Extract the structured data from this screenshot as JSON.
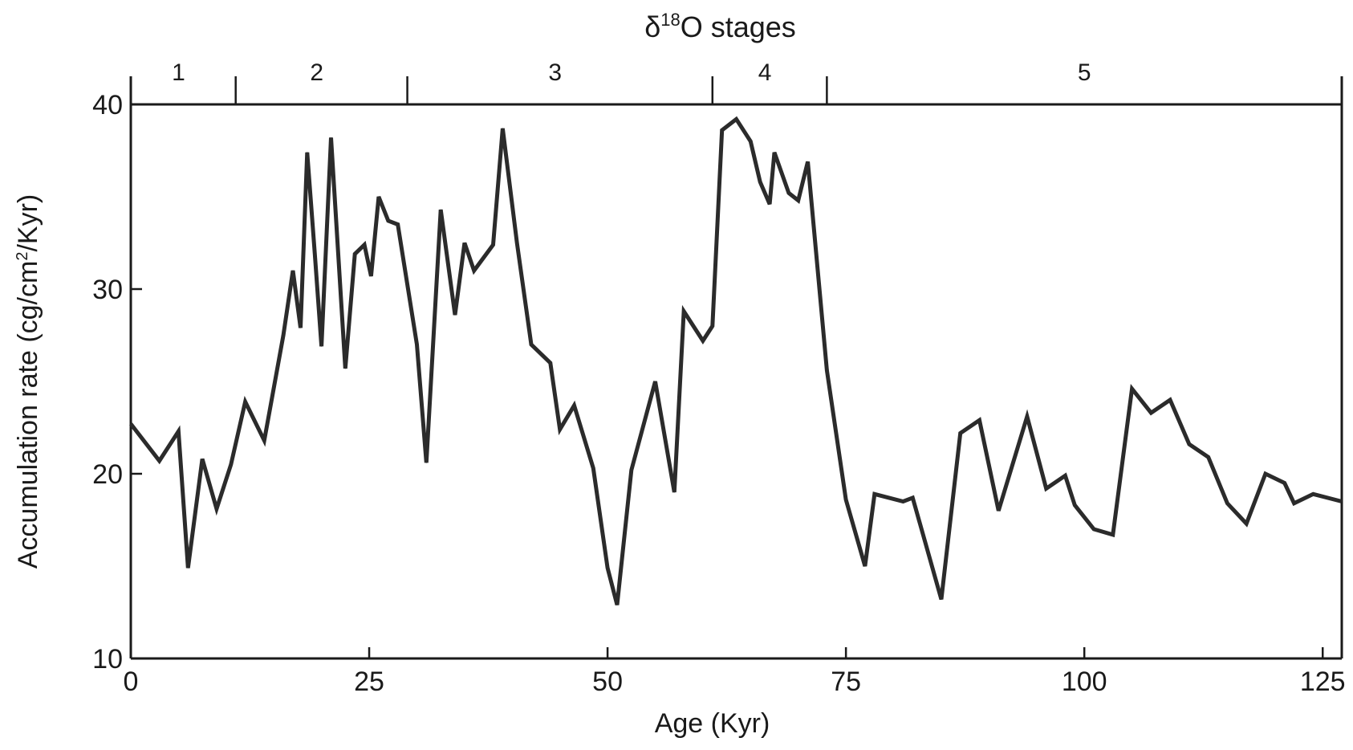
{
  "chart_data": {
    "type": "line",
    "title": "δ18O stages",
    "xlabel": "Age (Kyr)",
    "ylabel": "Accumulation rate (cg/cm2/Kyr)",
    "xlim": [
      0,
      127
    ],
    "ylim": [
      10,
      40
    ],
    "x_ticks": [
      0,
      25,
      50,
      75,
      100,
      125
    ],
    "y_ticks": [
      10,
      20,
      30,
      40
    ],
    "grid": false,
    "stage_boundaries": [
      0,
      11,
      29,
      61,
      73,
      127
    ],
    "stages": [
      {
        "label": "1",
        "x": 5
      },
      {
        "label": "2",
        "x": 19.5
      },
      {
        "label": "3",
        "x": 44.5
      },
      {
        "label": "4",
        "x": 66.5
      },
      {
        "label": "5",
        "x": 100
      }
    ],
    "series": [
      {
        "points": [
          [
            0,
            22.7
          ],
          [
            3,
            20.7
          ],
          [
            5,
            22.3
          ],
          [
            6,
            14.9
          ],
          [
            7.5,
            20.8
          ],
          [
            9,
            18.1
          ],
          [
            10.5,
            20.5
          ],
          [
            12,
            23.9
          ],
          [
            14,
            21.8
          ],
          [
            16,
            27.5
          ],
          [
            17,
            31.0
          ],
          [
            17.8,
            27.9
          ],
          [
            18.5,
            37.4
          ],
          [
            19.3,
            31.9
          ],
          [
            20,
            26.9
          ],
          [
            21,
            38.2
          ],
          [
            22.5,
            25.7
          ],
          [
            23.5,
            31.9
          ],
          [
            24.5,
            32.4
          ],
          [
            25.2,
            30.7
          ],
          [
            26,
            35.0
          ],
          [
            27,
            33.7
          ],
          [
            28,
            33.5
          ],
          [
            30,
            27.0
          ],
          [
            31,
            20.6
          ],
          [
            32.5,
            34.3
          ],
          [
            34,
            28.6
          ],
          [
            35,
            32.5
          ],
          [
            36,
            31.0
          ],
          [
            38,
            32.4
          ],
          [
            39,
            38.7
          ],
          [
            40.5,
            32.5
          ],
          [
            42,
            27.0
          ],
          [
            44,
            26.0
          ],
          [
            45,
            22.4
          ],
          [
            46.5,
            23.7
          ],
          [
            48.5,
            20.3
          ],
          [
            50,
            14.9
          ],
          [
            51,
            12.9
          ],
          [
            52.5,
            20.2
          ],
          [
            55,
            25.0
          ],
          [
            57,
            19.0
          ],
          [
            58,
            28.8
          ],
          [
            60,
            27.2
          ],
          [
            61,
            28.0
          ],
          [
            62,
            38.6
          ],
          [
            63.5,
            39.2
          ],
          [
            64.5,
            38.4
          ],
          [
            65,
            38.0
          ],
          [
            66,
            35.8
          ],
          [
            67,
            34.6
          ],
          [
            67.5,
            37.4
          ],
          [
            69,
            35.2
          ],
          [
            70,
            34.8
          ],
          [
            71,
            36.9
          ],
          [
            73,
            25.6
          ],
          [
            75,
            18.6
          ],
          [
            77,
            15.0
          ],
          [
            78,
            18.9
          ],
          [
            81,
            18.5
          ],
          [
            82,
            18.7
          ],
          [
            85,
            13.2
          ],
          [
            87,
            22.2
          ],
          [
            89,
            22.9
          ],
          [
            91,
            18.0
          ],
          [
            94,
            23.1
          ],
          [
            96,
            19.2
          ],
          [
            98,
            19.9
          ],
          [
            99,
            18.3
          ],
          [
            101,
            17.0
          ],
          [
            103,
            16.7
          ],
          [
            105,
            24.6
          ],
          [
            107,
            23.3
          ],
          [
            109,
            24.0
          ],
          [
            111,
            21.6
          ],
          [
            113,
            20.9
          ],
          [
            115,
            18.4
          ],
          [
            117,
            17.3
          ],
          [
            119,
            20.0
          ],
          [
            121,
            19.5
          ],
          [
            122,
            18.4
          ],
          [
            124,
            18.9
          ],
          [
            127,
            18.5
          ]
        ]
      }
    ]
  }
}
